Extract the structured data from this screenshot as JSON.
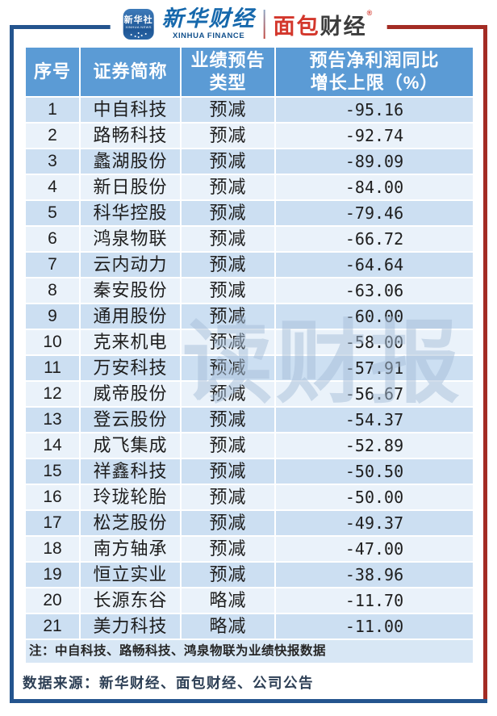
{
  "logos": {
    "xinhua_news_icon": {
      "cn": "新华社",
      "en": "XINHUA NEWS"
    },
    "xinhua_finance": {
      "cn": "新华财经",
      "en": "XINHUA FINANCE"
    },
    "bread_finance": {
      "cn_left": "面包",
      "cn_right": "财经",
      "reg": "®"
    }
  },
  "watermark": "读财报",
  "table": {
    "headers": [
      {
        "lines": [
          "序号"
        ]
      },
      {
        "lines": [
          "证券简称"
        ]
      },
      {
        "lines": [
          "业绩预告",
          "类型"
        ]
      },
      {
        "lines": [
          "预告净利润同比",
          "增长上限（%）"
        ]
      }
    ],
    "rows": [
      {
        "no": "1",
        "name": "中自科技",
        "type": "预减",
        "value": "-95.16"
      },
      {
        "no": "2",
        "name": "路畅科技",
        "type": "预减",
        "value": "-92.74"
      },
      {
        "no": "3",
        "name": "蠡湖股份",
        "type": "预减",
        "value": "-89.09"
      },
      {
        "no": "4",
        "name": "新日股份",
        "type": "预减",
        "value": "-84.00"
      },
      {
        "no": "5",
        "name": "科华控股",
        "type": "预减",
        "value": "-79.46"
      },
      {
        "no": "6",
        "name": "鸿泉物联",
        "type": "预减",
        "value": "-66.72"
      },
      {
        "no": "7",
        "name": "云内动力",
        "type": "预减",
        "value": "-64.64"
      },
      {
        "no": "8",
        "name": "秦安股份",
        "type": "预减",
        "value": "-63.06"
      },
      {
        "no": "9",
        "name": "通用股份",
        "type": "预减",
        "value": "-60.00"
      },
      {
        "no": "10",
        "name": "克来机电",
        "type": "预减",
        "value": "-58.00"
      },
      {
        "no": "11",
        "name": "万安科技",
        "type": "预减",
        "value": "-57.91"
      },
      {
        "no": "12",
        "name": "威帝股份",
        "type": "预减",
        "value": "-56.67"
      },
      {
        "no": "13",
        "name": "登云股份",
        "type": "预减",
        "value": "-54.37"
      },
      {
        "no": "14",
        "name": "成飞集成",
        "type": "预减",
        "value": "-52.89"
      },
      {
        "no": "15",
        "name": "祥鑫科技",
        "type": "预减",
        "value": "-50.50"
      },
      {
        "no": "16",
        "name": "玲珑轮胎",
        "type": "预减",
        "value": "-50.00"
      },
      {
        "no": "17",
        "name": "松芝股份",
        "type": "预减",
        "value": "-49.37"
      },
      {
        "no": "18",
        "name": "南方轴承",
        "type": "预减",
        "value": "-47.00"
      },
      {
        "no": "19",
        "name": "恒立实业",
        "type": "预减",
        "value": "-38.96"
      },
      {
        "no": "20",
        "name": "长源东谷",
        "type": "略减",
        "value": "-11.70"
      },
      {
        "no": "21",
        "name": "美力科技",
        "type": "略减",
        "value": "-11.00"
      }
    ],
    "note": "注：中自科技、路畅科技、鸿泉物联为业绩快报数据"
  },
  "source": "数据来源：新华财经、面包财经、公司公告",
  "chart_data": {
    "type": "table",
    "columns": [
      "序号",
      "证券简称",
      "业绩预告类型",
      "预告净利润同比增长上限（%）"
    ],
    "rows": [
      [
        1,
        "中自科技",
        "预减",
        -95.16
      ],
      [
        2,
        "路畅科技",
        "预减",
        -92.74
      ],
      [
        3,
        "蠡湖股份",
        "预减",
        -89.09
      ],
      [
        4,
        "新日股份",
        "预减",
        -84.0
      ],
      [
        5,
        "科华控股",
        "预减",
        -79.46
      ],
      [
        6,
        "鸿泉物联",
        "预减",
        -66.72
      ],
      [
        7,
        "云内动力",
        "预减",
        -64.64
      ],
      [
        8,
        "秦安股份",
        "预减",
        -63.06
      ],
      [
        9,
        "通用股份",
        "预减",
        -60.0
      ],
      [
        10,
        "克来机电",
        "预减",
        -58.0
      ],
      [
        11,
        "万安科技",
        "预减",
        -57.91
      ],
      [
        12,
        "威帝股份",
        "预减",
        -56.67
      ],
      [
        13,
        "登云股份",
        "预减",
        -54.37
      ],
      [
        14,
        "成飞集成",
        "预减",
        -52.89
      ],
      [
        15,
        "祥鑫科技",
        "预减",
        -50.5
      ],
      [
        16,
        "玲珑轮胎",
        "预减",
        -50.0
      ],
      [
        17,
        "松芝股份",
        "预减",
        -49.37
      ],
      [
        18,
        "南方轴承",
        "预减",
        -47.0
      ],
      [
        19,
        "恒立实业",
        "预减",
        -38.96
      ],
      [
        20,
        "长源东谷",
        "略减",
        -11.7
      ],
      [
        21,
        "美力科技",
        "略减",
        -11.0
      ]
    ],
    "note": "注：中自科技、路畅科技、鸿泉物联为业绩快报数据",
    "source": "数据来源：新华财经、面包财经、公司公告"
  },
  "colors": {
    "header_bg": "#5B9BD5",
    "row_odd_bg": "#CCDFF2",
    "row_even_bg": "#EAF2FA",
    "note_bg": "#D8E7F5",
    "frame_blue": "#24548E",
    "frame_red": "#A32C24",
    "brand_blue": "#1668AC",
    "brand_red": "#D3372C",
    "watermark": "#A7BFD9"
  }
}
